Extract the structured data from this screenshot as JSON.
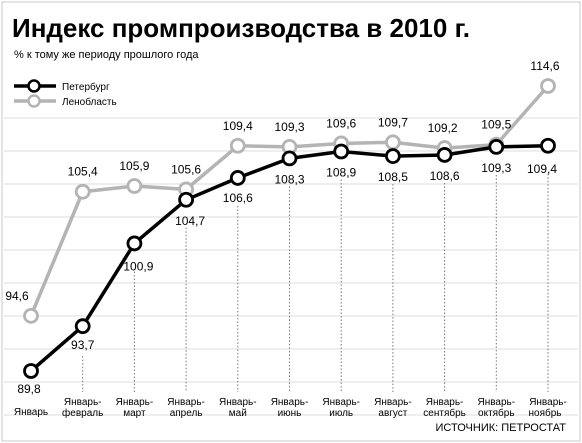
{
  "title": "Индекс промпроизводства в 2010 г.",
  "subtitle": "% к тому же периоду прошлого года",
  "source": "ИСТОЧНИК: ПЕТРОСТАТ",
  "chart_data": {
    "type": "line",
    "title": "Индекс промпроизводства в 2010 г.",
    "subtitle": "% к тому же периоду прошлого года",
    "categories": [
      "Январь",
      "Январь-февраль",
      "Январь-март",
      "Январь-апрель",
      "Январь-май",
      "Январь-июнь",
      "Январь-июль",
      "Январь-август",
      "Январь-сентябрь",
      "Январь-октябрь",
      "Январь-ноябрь"
    ],
    "category_labels": [
      [
        "Январь"
      ],
      [
        "Январь-",
        "февраль"
      ],
      [
        "Январь-",
        "март"
      ],
      [
        "Январь-",
        "апрель"
      ],
      [
        "Январь-",
        "май"
      ],
      [
        "Январь-",
        "июнь"
      ],
      [
        "Январь-",
        "июль"
      ],
      [
        "Январь-",
        "август"
      ],
      [
        "Январь-",
        "сентябрь"
      ],
      [
        "Январь-",
        "октябрь"
      ],
      [
        "Январь-",
        "ноябрь"
      ]
    ],
    "series": [
      {
        "name": "Петербург",
        "color": "#000000",
        "values": [
          89.8,
          93.7,
          100.9,
          104.7,
          106.6,
          108.3,
          108.9,
          108.5,
          108.6,
          109.3,
          109.4
        ],
        "labels": [
          "89,8",
          "93,7",
          "100,9",
          "104,7",
          "106,6",
          "108,3",
          "108,9",
          "108,5",
          "108,6",
          "109,3",
          "109,4"
        ]
      },
      {
        "name": "Ленобласть",
        "color": "#b4b4b4",
        "values": [
          94.6,
          105.4,
          105.9,
          105.6,
          109.4,
          109.3,
          109.6,
          109.7,
          109.2,
          109.5,
          114.6
        ],
        "labels": [
          "94,6",
          "105,4",
          "105,9",
          "105,6",
          "109,4",
          "109,3",
          "109,6",
          "109,7",
          "109,2",
          "109,5",
          "114,6"
        ]
      }
    ],
    "legend": "top-left",
    "grid": "horizontal",
    "ylim": [
      88,
      117
    ]
  }
}
